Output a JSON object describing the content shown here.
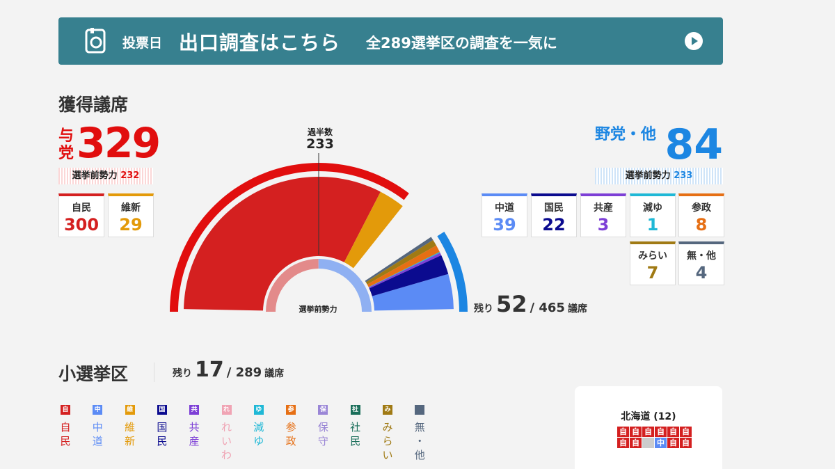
{
  "banner": {
    "label1": "投票日",
    "label2": "出口調査はこちら",
    "label3": "全289選挙区の調査を一気に"
  },
  "section_title": "獲得議席",
  "ruling": {
    "label": "与党",
    "seats": "329",
    "prev_label": "選挙前勢力",
    "prev_value": "232",
    "color": "#e10e0e"
  },
  "opposition": {
    "label": "野党・他",
    "seats": "84",
    "prev_label": "選挙前勢力",
    "prev_value": "233",
    "color": "#1c86e2"
  },
  "ruling_parties": [
    {
      "name": "自民",
      "seats": "300",
      "color": "#d42020"
    },
    {
      "name": "維新",
      "seats": "29",
      "color": "#e39a0a"
    }
  ],
  "opposition_parties": [
    {
      "name": "中道",
      "seats": "39",
      "color": "#5b8bf5"
    },
    {
      "name": "国民",
      "seats": "22",
      "color": "#0b0b8f"
    },
    {
      "name": "共産",
      "seats": "3",
      "color": "#7d3fd6"
    },
    {
      "name": "減ゆ",
      "seats": "1",
      "color": "#1fb8d6"
    },
    {
      "name": "参政",
      "seats": "8",
      "color": "#e66f14"
    },
    {
      "name": "みらい",
      "seats": "7",
      "color": "#a07a14"
    },
    {
      "name": "無・他",
      "seats": "4",
      "color": "#55677e"
    }
  ],
  "chart": {
    "majority_label": "過半数",
    "majority_value": "233",
    "remaining_label": "残り",
    "remaining_value": "52",
    "total_label": "/ 465",
    "unit": "議席",
    "prev_strength_label": "選挙前勢力"
  },
  "chart_data": {
    "type": "pie",
    "total": 465,
    "majority": 233,
    "remaining": 52,
    "series": [
      {
        "name": "自民",
        "value": 300
      },
      {
        "name": "維新",
        "value": 29
      },
      {
        "name": "中道",
        "value": 39
      },
      {
        "name": "国民",
        "value": 22
      },
      {
        "name": "共産",
        "value": 3
      },
      {
        "name": "減ゆ",
        "value": 1
      },
      {
        "name": "参政",
        "value": 8
      },
      {
        "name": "みらい",
        "value": 7
      },
      {
        "name": "無・他",
        "value": 4
      }
    ]
  },
  "smd": {
    "title": "小選挙区",
    "remaining_label": "残り",
    "remaining_value": "17",
    "total_label": "/ 289",
    "unit": "議席"
  },
  "legend": [
    {
      "abbr": "自",
      "chars": [
        "自",
        "民"
      ],
      "color": "#d42020"
    },
    {
      "abbr": "中",
      "chars": [
        "中",
        "道"
      ],
      "color": "#5b8bf5"
    },
    {
      "abbr": "維",
      "chars": [
        "維",
        "新"
      ],
      "color": "#e39a0a"
    },
    {
      "abbr": "国",
      "chars": [
        "国",
        "民"
      ],
      "color": "#0b0b8f"
    },
    {
      "abbr": "共",
      "chars": [
        "共",
        "産"
      ],
      "color": "#7d3fd6"
    },
    {
      "abbr": "れ",
      "chars": [
        "れ",
        "い",
        "わ"
      ],
      "color": "#f0a4b4"
    },
    {
      "abbr": "ゆ",
      "chars": [
        "減",
        "ゆ"
      ],
      "color": "#1fb8d6"
    },
    {
      "abbr": "参",
      "chars": [
        "参",
        "政"
      ],
      "color": "#e66f14"
    },
    {
      "abbr": "保",
      "chars": [
        "保",
        "守"
      ],
      "color": "#9a86d6"
    },
    {
      "abbr": "社",
      "chars": [
        "社",
        "民"
      ],
      "color": "#1a6e5a"
    },
    {
      "abbr": "み",
      "chars": [
        "み",
        "ら",
        "い"
      ],
      "color": "#a07a14"
    },
    {
      "abbr": "",
      "chars": [
        "無",
        "・",
        "他"
      ],
      "color": "#55677e"
    }
  ],
  "map": {
    "title": "北海道 (12)",
    "cells": [
      {
        "t": "自",
        "c": "#d42020"
      },
      {
        "t": "自",
        "c": "#d42020"
      },
      {
        "t": "自",
        "c": "#d42020"
      },
      {
        "t": "自",
        "c": "#d42020"
      },
      {
        "t": "自",
        "c": "#d42020"
      },
      {
        "t": "自",
        "c": "#d42020"
      },
      {
        "t": "自",
        "c": "#d42020"
      },
      {
        "t": "自",
        "c": "#d42020"
      },
      {
        "t": "",
        "c": "#cccccc"
      },
      {
        "t": "中",
        "c": "#5b8bf5"
      },
      {
        "t": "自",
        "c": "#d42020"
      },
      {
        "t": "自",
        "c": "#d42020"
      }
    ]
  }
}
